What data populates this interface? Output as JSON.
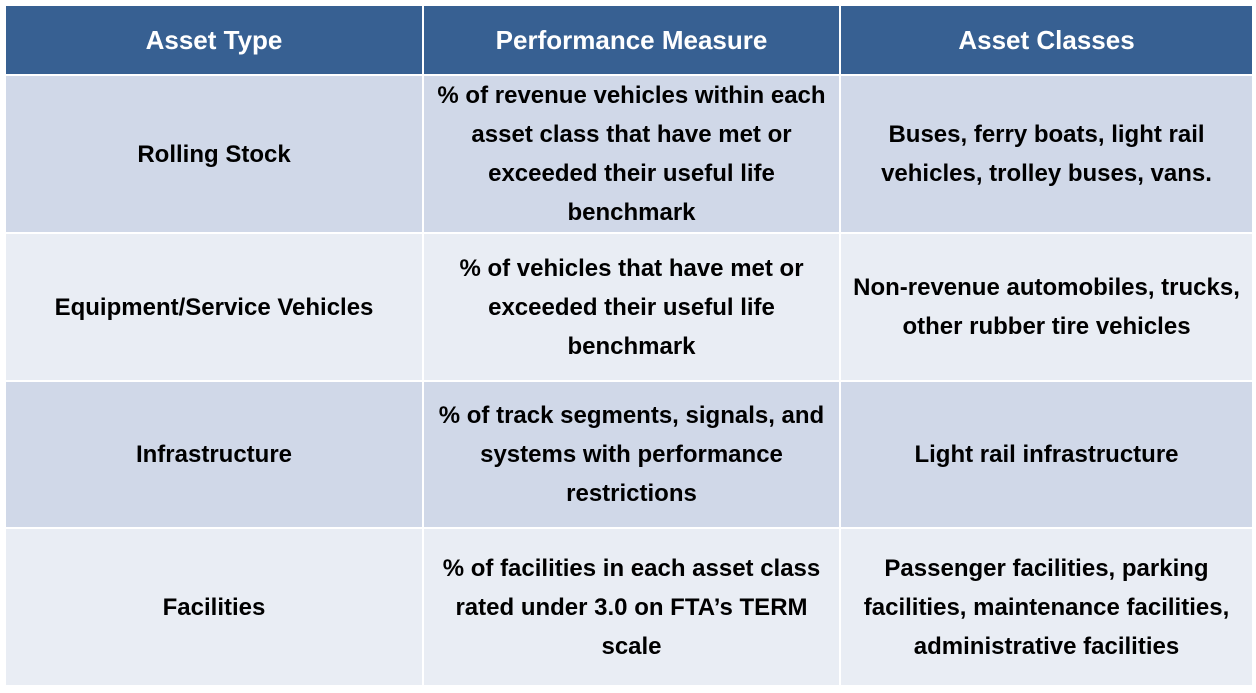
{
  "table": {
    "headers": [
      "Asset Type",
      "Performance Measure",
      "Asset Classes"
    ],
    "rows": [
      {
        "asset_type": "Rolling Stock",
        "performance_measure": "% of revenue vehicles within each asset class that have met or exceeded their useful life benchmark",
        "asset_classes": "Buses, ferry boats, light rail vehicles, trolley buses, vans."
      },
      {
        "asset_type": "Equipment/Service Vehicles",
        "performance_measure": "% of vehicles that have met or exceeded their useful life benchmark",
        "asset_classes": "Non-revenue automobiles, trucks, other rubber tire vehicles"
      },
      {
        "asset_type": "Infrastructure",
        "performance_measure": "% of track segments, signals, and systems with performance restrictions",
        "asset_classes": "Light rail infrastructure"
      },
      {
        "asset_type": "Facilities",
        "performance_measure": "% of facilities in each asset class rated under 3.0 on FTA’s TERM scale",
        "asset_classes": "Passenger facilities, parking facilities, maintenance facilities, administrative facilities"
      }
    ]
  },
  "colors": {
    "header_bg": "#376092",
    "header_text": "#ffffff",
    "row_odd_bg": "#d0d8e8",
    "row_even_bg": "#e9edf4",
    "cell_text": "#000000"
  }
}
